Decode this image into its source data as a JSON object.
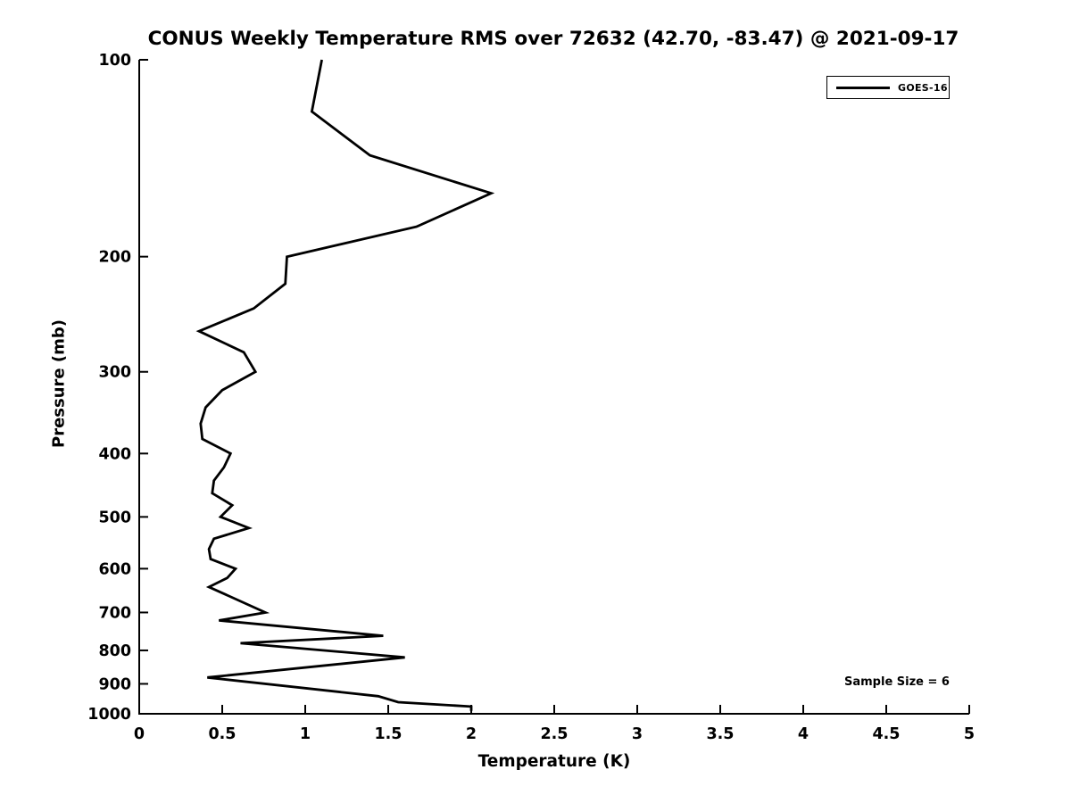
{
  "title": "CONUS Weekly Temperature RMS over 72632 (42.70, -83.47) @ 2021-09-17",
  "legend": {
    "label": "GOES-16",
    "position": "upper-right"
  },
  "annotation": {
    "sample_size": "Sample Size = 6"
  },
  "colors": {
    "line": "#000000",
    "text": "#000000",
    "background": "#ffffff"
  },
  "chart_data": {
    "type": "line",
    "title": "CONUS Weekly Temperature RMS over 72632 (42.70, -83.47) @ 2021-09-17",
    "xlabel": "Temperature (K)",
    "ylabel": "Pressure (mb)",
    "xlim": [
      0,
      5
    ],
    "ylim": [
      100,
      1000
    ],
    "y_scale": "log",
    "y_inverted": true,
    "grid": false,
    "x_tick_labels": [
      "0",
      "0.5",
      "1",
      "1.5",
      "2",
      "2.5",
      "3",
      "3.5",
      "4",
      "4.5",
      "5"
    ],
    "y_tick_labels": [
      "100",
      "200",
      "300",
      "400",
      "500",
      "600",
      "700",
      "800",
      "900",
      "1000"
    ],
    "legend_entries": [
      "GOES-16"
    ],
    "annotations": [
      {
        "text": "Sample Size = 6"
      }
    ],
    "series": [
      {
        "name": "GOES-16",
        "color": "#000000",
        "x_units": "K (RMS)",
        "y_units": "mb",
        "points": [
          [
            1.1,
            100
          ],
          [
            1.04,
            120
          ],
          [
            1.39,
            140
          ],
          [
            2.12,
            160
          ],
          [
            1.67,
            180
          ],
          [
            0.89,
            200
          ],
          [
            0.88,
            220
          ],
          [
            0.69,
            240
          ],
          [
            0.36,
            260
          ],
          [
            0.63,
            280
          ],
          [
            0.7,
            300
          ],
          [
            0.5,
            320
          ],
          [
            0.4,
            340
          ],
          [
            0.37,
            360
          ],
          [
            0.38,
            380
          ],
          [
            0.55,
            400
          ],
          [
            0.51,
            420
          ],
          [
            0.45,
            440
          ],
          [
            0.44,
            460
          ],
          [
            0.56,
            480
          ],
          [
            0.49,
            500
          ],
          [
            0.66,
            520
          ],
          [
            0.45,
            540
          ],
          [
            0.42,
            560
          ],
          [
            0.43,
            580
          ],
          [
            0.58,
            600
          ],
          [
            0.53,
            620
          ],
          [
            0.42,
            640
          ],
          [
            0.76,
            700
          ],
          [
            0.48,
            720
          ],
          [
            1.47,
            760
          ],
          [
            0.61,
            780
          ],
          [
            1.6,
            820
          ],
          [
            0.41,
            880
          ],
          [
            1.44,
            940
          ],
          [
            1.56,
            960
          ],
          [
            2.0,
            975
          ],
          [
            2.0,
            990
          ]
        ]
      }
    ]
  }
}
